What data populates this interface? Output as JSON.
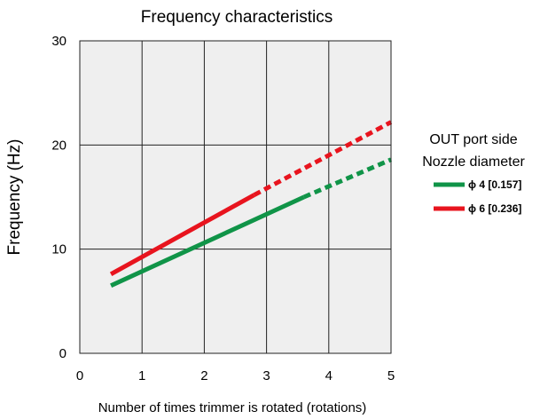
{
  "chart_data": {
    "type": "line",
    "title": "Frequency characteristics",
    "xlabel": "Number of times trimmer is rotated (rotations)",
    "ylabel": "Frequency (Hz)",
    "xlim": [
      0,
      5
    ],
    "ylim": [
      0,
      30
    ],
    "x_ticks": [
      "0",
      "1",
      "2",
      "3",
      "4",
      "5"
    ],
    "y_ticks": [
      "0",
      "10",
      "20",
      "30"
    ],
    "grid": true,
    "legend": {
      "title_lines": [
        "OUT port side",
        "Nozzle diameter"
      ],
      "placement": "right"
    },
    "series": [
      {
        "name": "ϕ 4 [0.157]",
        "color": "#109448",
        "solid": [
          [
            0.5,
            6.5
          ],
          [
            3.6,
            15.0
          ]
        ],
        "dashed": [
          [
            3.6,
            15.0
          ],
          [
            5.0,
            18.6
          ]
        ]
      },
      {
        "name": "ϕ 6 [0.236]",
        "color": "#e8141e",
        "solid": [
          [
            0.5,
            7.6
          ],
          [
            2.8,
            15.2
          ]
        ],
        "dashed": [
          [
            2.8,
            15.2
          ],
          [
            5.0,
            22.2
          ]
        ]
      }
    ]
  }
}
